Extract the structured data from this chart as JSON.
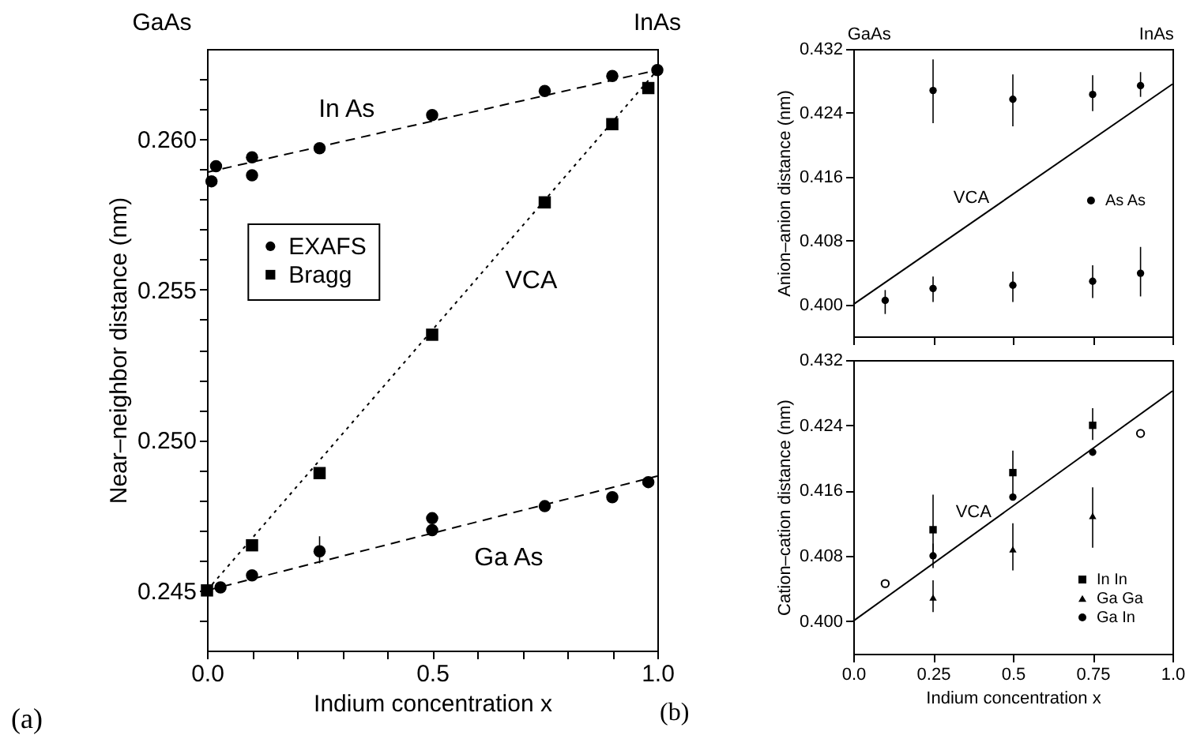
{
  "chart_data": [
    {
      "type": "scatter",
      "xlabel": "Indium concentration x",
      "ylabel": "Near–neighbor distance (nm)",
      "xlim": [
        0,
        1
      ],
      "ylim": [
        0.243,
        0.263
      ],
      "xticks": [
        {
          "value": 0,
          "label": "0.0"
        },
        {
          "value": 0.1,
          "label": null
        },
        {
          "value": 0.2,
          "label": null
        },
        {
          "value": 0.3,
          "label": null
        },
        {
          "value": 0.4,
          "label": null
        },
        {
          "value": 0.5,
          "label": "0.5"
        },
        {
          "value": 0.6,
          "label": null
        },
        {
          "value": 0.7,
          "label": null
        },
        {
          "value": 0.8,
          "label": null
        },
        {
          "value": 0.9,
          "label": null
        },
        {
          "value": 1,
          "label": "1.0"
        }
      ],
      "yticks": [
        {
          "value": 0.244,
          "label": null
        },
        0.245,
        {
          "value": 0.246,
          "label": null
        },
        {
          "value": 0.247,
          "label": null
        },
        {
          "value": 0.248,
          "label": null
        },
        {
          "value": 0.249,
          "label": null
        },
        {
          "value": 0.25,
          "label": "0.250"
        },
        {
          "value": 0.251,
          "label": null
        },
        {
          "value": 0.252,
          "label": null
        },
        {
          "value": 0.253,
          "label": null
        },
        {
          "value": 0.254,
          "label": null
        },
        0.255,
        {
          "value": 0.256,
          "label": null
        },
        {
          "value": 0.257,
          "label": null
        },
        {
          "value": 0.258,
          "label": null
        },
        {
          "value": 0.259,
          "label": null
        },
        {
          "value": 0.26,
          "label": "0.260"
        },
        {
          "value": 0.261,
          "label": null
        },
        {
          "value": 0.262,
          "label": null
        }
      ],
      "legend": "left",
      "series": [
        {
          "name": "EXAFS",
          "color": "#000000",
          "marker": "circle",
          "x": [
            0.01,
            0.02,
            0.1,
            0.1,
            0.25,
            0.5,
            0.75,
            0.9,
            1.0,
            0.03,
            0.1,
            0.25,
            0.5,
            0.5,
            0.75,
            0.9,
            0.98
          ],
          "values": [
            0.2586,
            0.2591,
            0.2594,
            0.2588,
            0.2597,
            0.2608,
            0.2616,
            0.2621,
            0.2623,
            0.2451,
            0.2455,
            0.2463,
            0.2474,
            0.247,
            0.2478,
            0.2481,
            0.2486
          ],
          "errors": [
            null,
            null,
            null,
            null,
            null,
            null,
            null,
            null,
            null,
            null,
            null,
            [
              0.2459,
              0.2468
            ],
            null,
            null,
            null,
            null,
            null
          ]
        },
        {
          "name": "Bragg",
          "color": "#000000",
          "marker": "square",
          "x": [
            0,
            0.1,
            0.25,
            0.5,
            0.75,
            0.9,
            0.98
          ],
          "values": [
            0.245,
            0.2465,
            0.2489,
            0.2535,
            0.2579,
            0.2605,
            0.2617
          ]
        },
        {
          "type": "line",
          "color": "#000000",
          "line_style": "dashed",
          "x": [
            0,
            1
          ],
          "values": [
            0.2589,
            0.2623
          ]
        },
        {
          "type": "line",
          "color": "#000000",
          "line_style": "dashed",
          "x": [
            0,
            1
          ],
          "values": [
            0.245,
            0.2488
          ]
        },
        {
          "type": "line",
          "color": "#000000",
          "line_style": "dotted",
          "x": [
            0,
            1
          ],
          "values": [
            0.245,
            0.2623
          ]
        }
      ],
      "annotations": [
        "GaAs",
        "InAs",
        "In As",
        "VCA",
        "Ga As",
        "(a)"
      ]
    },
    {
      "type": "scatter",
      "ylabel": "Anion–anion distance (nm)",
      "xlim": [
        0,
        1
      ],
      "ylim": [
        0.396,
        0.432
      ],
      "xticks": [
        0,
        0.25,
        0.5,
        0.75,
        1
      ],
      "yticks": [
        {
          "value": 0.4,
          "label": "0.400"
        },
        0.408,
        0.416,
        0.424,
        0.432
      ],
      "tick_labels": "y",
      "legend": "right",
      "series": [
        {
          "name": "As As",
          "color": "#000000",
          "marker": "circle",
          "x": [
            0.1,
            0.25,
            0.25,
            0.5,
            0.5,
            0.75,
            0.75,
            0.9,
            0.9
          ],
          "values": [
            0.4005,
            0.4268,
            0.402,
            0.4257,
            0.4024,
            0.4263,
            0.4029,
            0.4274,
            0.4039
          ],
          "errors": [
            [
              0.3988,
              0.4018
            ],
            [
              0.4227,
              0.4307
            ],
            [
              0.4003,
              0.4035
            ],
            [
              0.4223,
              0.4288
            ],
            [
              0.4003,
              0.4041
            ],
            [
              0.4242,
              0.4287
            ],
            [
              0.4008,
              0.4049
            ],
            [
              0.426,
              0.4291
            ],
            [
              0.401,
              0.4072
            ]
          ]
        },
        {
          "type": "line",
          "color": "#000000",
          "line_style": "solid",
          "x": [
            0,
            1
          ],
          "values": [
            0.4,
            0.4276
          ]
        }
      ],
      "annotations": [
        "GaAs",
        "InAs",
        "VCA"
      ]
    },
    {
      "type": "scatter",
      "xlabel": "Indium concentration x",
      "ylabel": "Cation–cation distance (nm)",
      "xlim": [
        0,
        1
      ],
      "ylim": [
        0.396,
        0.432
      ],
      "xticks": [
        {
          "value": 0,
          "label": "0.0"
        },
        0.25,
        0.5,
        0.75,
        {
          "value": 1,
          "label": "1.0"
        }
      ],
      "yticks": [
        {
          "value": 0.4,
          "label": "0.400"
        },
        0.408,
        0.416,
        0.424,
        0.432
      ],
      "legend": "bottom right",
      "series": [
        {
          "name": "In In",
          "color": "#000000",
          "marker": "square",
          "x": [
            0.25,
            0.5,
            0.75
          ],
          "values": [
            0.4112,
            0.4182,
            0.424
          ],
          "errors": [
            [
              0.408,
              0.4155
            ],
            [
              0.415,
              0.4209
            ],
            [
              0.4222,
              0.4261
            ]
          ]
        },
        {
          "name": "Ga Ga",
          "color": "#000000",
          "marker": "triangle",
          "x": [
            0.25,
            0.5,
            0.75
          ],
          "values": [
            0.4029,
            0.4088,
            0.4129
          ],
          "errors": [
            [
              0.4011,
              0.405
            ],
            [
              0.4062,
              0.412
            ],
            [
              0.409,
              0.4164
            ]
          ]
        },
        {
          "name": "Ga In",
          "color": "#000000",
          "marker": "circle",
          "x": [
            0.25,
            0.5,
            0.75
          ],
          "values": [
            0.408,
            0.4152,
            0.4207
          ],
          "errors": [
            [
              0.4065,
              0.4095
            ],
            null,
            null
          ]
        },
        {
          "color": "#ffffff",
          "marker": "circle",
          "x": [
            0.1,
            0.9
          ],
          "values": [
            0.4046,
            0.423
          ]
        },
        {
          "type": "line",
          "color": "#000000",
          "line_style": "solid",
          "x": [
            0,
            1
          ],
          "values": [
            0.4,
            0.4282
          ]
        }
      ],
      "annotations": [
        "VCA",
        "(b)"
      ]
    }
  ]
}
